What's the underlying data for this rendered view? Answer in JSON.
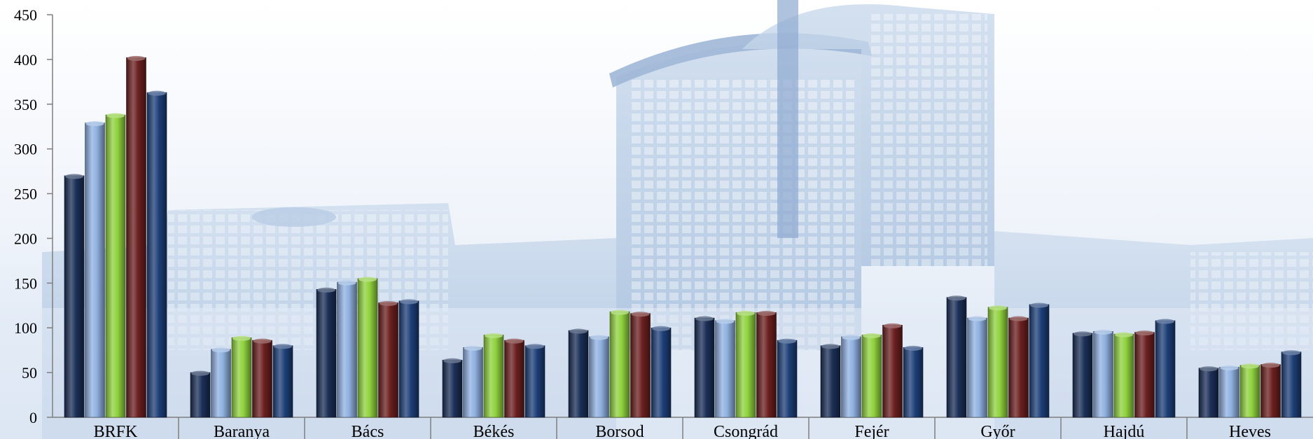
{
  "chart_data": {
    "type": "bar",
    "categories": [
      "BRFK",
      "Baranya",
      "Bács",
      "Békés",
      "Borsod",
      "Csongrád",
      "Fejér",
      "Győr",
      "Hajdú",
      "Heves"
    ],
    "series": [
      {
        "color": "#1b2f57",
        "values": [
          270,
          50,
          143,
          64,
          97,
          111,
          80,
          134,
          94,
          55
        ]
      },
      {
        "color": "#8fb0e0",
        "values": [
          329,
          76,
          151,
          78,
          90,
          108,
          90,
          111,
          96,
          56
        ]
      },
      {
        "color": "#8fd13d",
        "values": [
          338,
          89,
          155,
          92,
          118,
          117,
          92,
          123,
          93,
          58
        ]
      },
      {
        "color": "#6b1f1f",
        "values": [
          402,
          86,
          128,
          86,
          116,
          117,
          103,
          111,
          95,
          59
        ]
      },
      {
        "color": "#1d3f78",
        "values": [
          363,
          80,
          130,
          80,
          100,
          86,
          78,
          126,
          108,
          73
        ]
      }
    ],
    "ylim": [
      0,
      450
    ],
    "yticks": [
      "0",
      "50",
      "100",
      "150",
      "200",
      "250",
      "300",
      "350",
      "400",
      "450"
    ],
    "grid": false
  }
}
